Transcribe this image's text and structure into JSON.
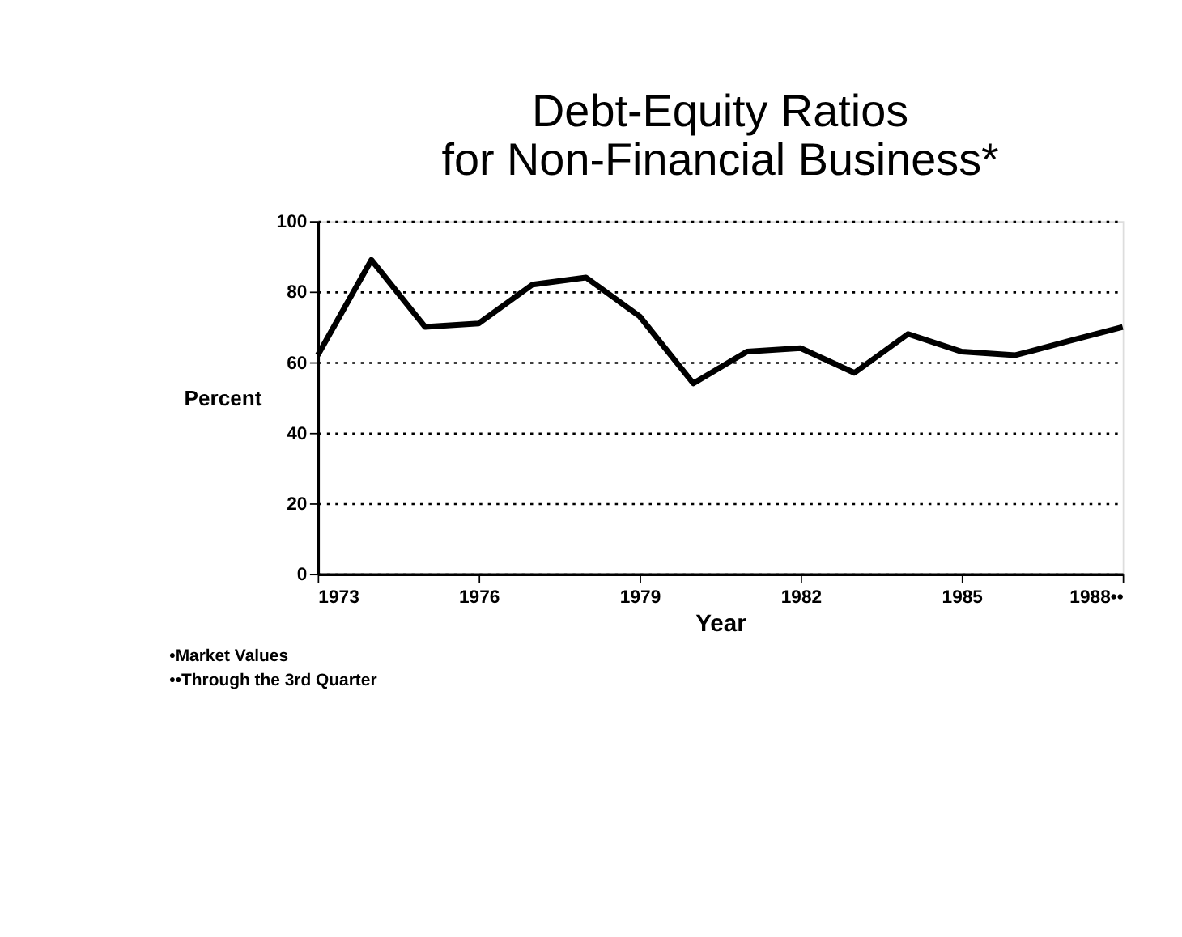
{
  "chart_data": {
    "type": "line",
    "title": [
      "Debt-Equity Ratios",
      "for Non-Financial Business*"
    ],
    "xlabel": "Year",
    "ylabel": "Percent",
    "x": [
      1973,
      1974,
      1975,
      1976,
      1977,
      1978,
      1979,
      1980,
      1981,
      1982,
      1983,
      1984,
      1985,
      1986,
      1987,
      1988
    ],
    "series": [
      {
        "color": "#000000",
        "values": [
          62,
          89,
          70,
          71,
          82,
          84,
          73,
          54,
          63,
          64,
          57,
          68,
          63,
          62,
          66,
          70
        ]
      }
    ],
    "xlim": [
      1973,
      1988
    ],
    "xticks": [
      1973,
      1976,
      1979,
      1982,
      1985,
      {
        "value": 1988,
        "label": "1988••"
      }
    ],
    "ylim": [
      0,
      100
    ],
    "yticks": [
      0,
      20,
      40,
      60,
      80,
      100
    ],
    "grid": "y",
    "legend": false,
    "marker": "none",
    "line_style": "solid",
    "annotations": [
      "•Market Values",
      "••Through the 3rd Quarter"
    ]
  }
}
